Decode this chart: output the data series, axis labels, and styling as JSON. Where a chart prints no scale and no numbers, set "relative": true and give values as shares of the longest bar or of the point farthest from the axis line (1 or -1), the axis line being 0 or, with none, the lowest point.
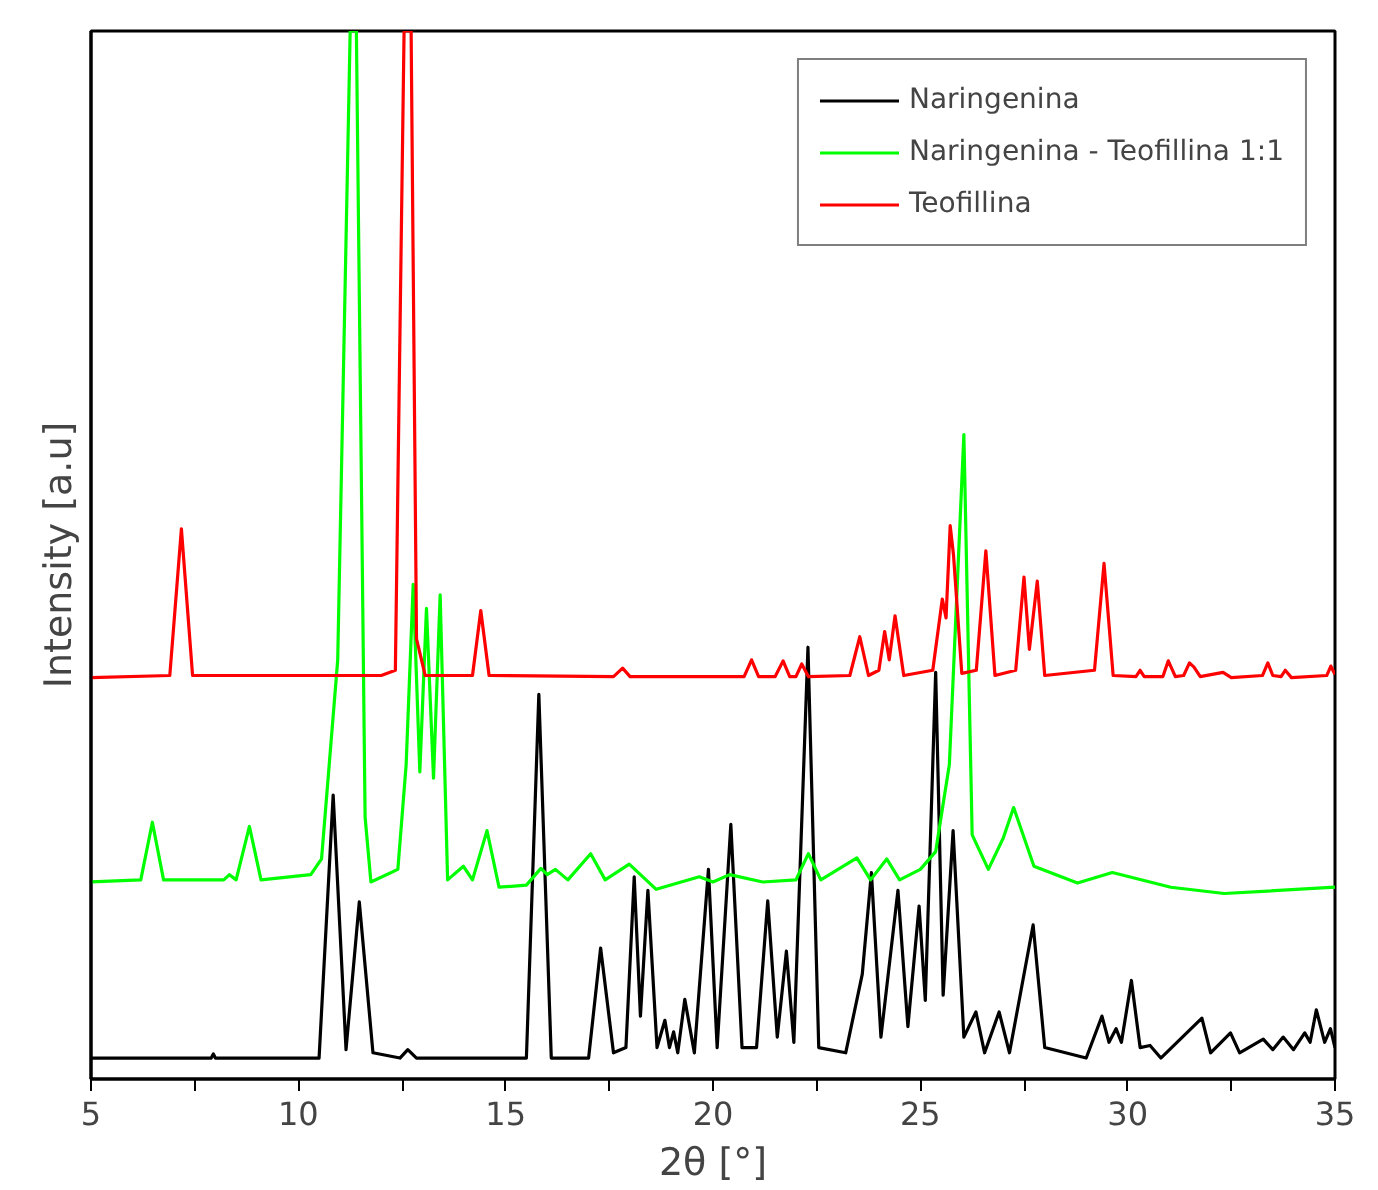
{
  "chart_data": {
    "type": "line",
    "relative": true,
    "xlabel": "2θ [°]",
    "ylabel": "Intensity [a.u]",
    "xlim": [
      5,
      35
    ],
    "xticks": [
      5,
      {
        "value": 7.5,
        "label": null
      },
      10,
      {
        "value": 12.5,
        "label": null
      },
      15,
      {
        "value": 17.5,
        "label": null
      },
      20,
      {
        "value": 22.5,
        "label": null
      },
      25,
      {
        "value": 27.5,
        "label": null
      },
      30,
      {
        "value": 32.5,
        "label": null
      },
      35
    ],
    "tick_labels": "x",
    "legend": "top right",
    "line_style": "solid",
    "marker": "none",
    "series": [
      {
        "name": "Naringenina",
        "color": "#000000",
        "x": [
          5.0,
          7.9,
          7.95,
          8.0,
          10.5,
          10.84,
          11.15,
          11.47,
          11.8,
          12.45,
          12.64,
          12.85,
          15.5,
          15.8,
          16.1,
          17.0,
          17.29,
          17.6,
          17.9,
          18.1,
          18.25,
          18.43,
          18.65,
          18.84,
          18.95,
          19.05,
          19.15,
          19.32,
          19.55,
          19.89,
          20.1,
          20.43,
          20.7,
          21.05,
          21.32,
          21.55,
          21.77,
          21.95,
          22.29,
          22.55,
          23.2,
          23.6,
          23.82,
          24.05,
          24.46,
          24.7,
          24.97,
          25.12,
          25.37,
          25.55,
          25.79,
          26.05,
          26.34,
          26.55,
          26.9,
          27.15,
          27.72,
          28.0,
          29.0,
          29.38,
          29.55,
          29.72,
          29.85,
          30.09,
          30.3,
          30.54,
          30.8,
          31.79,
          32.0,
          32.48,
          32.7,
          33.27,
          33.5,
          33.75,
          34.0,
          34.27,
          34.4,
          34.55,
          34.75,
          34.89,
          35.0
        ],
        "values": [
          0.02,
          0.02,
          0.024,
          0.02,
          0.02,
          0.271,
          0.028,
          0.169,
          0.025,
          0.02,
          0.028,
          0.02,
          0.02,
          0.367,
          0.02,
          0.02,
          0.125,
          0.025,
          0.03,
          0.193,
          0.06,
          0.18,
          0.03,
          0.056,
          0.03,
          0.045,
          0.025,
          0.076,
          0.025,
          0.2,
          0.03,
          0.243,
          0.03,
          0.03,
          0.17,
          0.04,
          0.122,
          0.035,
          0.412,
          0.03,
          0.025,
          0.1,
          0.197,
          0.04,
          0.18,
          0.05,
          0.165,
          0.075,
          0.388,
          0.08,
          0.237,
          0.04,
          0.064,
          0.025,
          0.064,
          0.025,
          0.147,
          0.03,
          0.02,
          0.06,
          0.035,
          0.048,
          0.035,
          0.094,
          0.03,
          0.032,
          0.02,
          0.058,
          0.025,
          0.044,
          0.025,
          0.038,
          0.028,
          0.04,
          0.028,
          0.044,
          0.035,
          0.066,
          0.035,
          0.048,
          0.03
        ]
      },
      {
        "name": "Naringenina - Teofillina 1:1",
        "color": "#00ff00",
        "x": [
          5.0,
          6.2,
          6.48,
          6.75,
          8.2,
          8.34,
          8.5,
          8.82,
          9.1,
          10.3,
          10.56,
          10.95,
          11.25,
          11.4,
          11.61,
          11.75,
          12.4,
          12.6,
          12.77,
          12.93,
          13.09,
          13.26,
          13.42,
          13.6,
          13.98,
          14.2,
          14.55,
          14.84,
          15.5,
          15.85,
          16.0,
          16.2,
          16.5,
          17.05,
          17.4,
          17.98,
          18.63,
          19.67,
          20.0,
          20.4,
          21.2,
          22.0,
          22.3,
          22.6,
          23.47,
          23.8,
          24.19,
          24.5,
          25.0,
          25.37,
          25.7,
          26.05,
          26.25,
          26.64,
          27.0,
          27.25,
          27.74,
          28.79,
          29.63,
          31.04,
          32.33,
          35.0
        ],
        "values": [
          0.188,
          0.19,
          0.245,
          0.19,
          0.19,
          0.195,
          0.19,
          0.241,
          0.19,
          0.195,
          0.21,
          0.4,
          1.0,
          1.0,
          0.25,
          0.188,
          0.2,
          0.3,
          0.472,
          0.293,
          0.449,
          0.287,
          0.462,
          0.19,
          0.203,
          0.19,
          0.237,
          0.183,
          0.185,
          0.201,
          0.195,
          0.2,
          0.19,
          0.215,
          0.19,
          0.205,
          0.181,
          0.193,
          0.188,
          0.195,
          0.188,
          0.19,
          0.215,
          0.19,
          0.211,
          0.19,
          0.21,
          0.19,
          0.2,
          0.217,
          0.3,
          0.615,
          0.233,
          0.2,
          0.23,
          0.259,
          0.203,
          0.187,
          0.197,
          0.183,
          0.177,
          0.183
        ]
      },
      {
        "name": "Teofillina",
        "color": "#ff0000",
        "x": [
          5.0,
          6.9,
          7.18,
          7.45,
          12.0,
          12.34,
          12.55,
          12.72,
          12.85,
          13.06,
          14.2,
          14.4,
          14.6,
          17.6,
          17.82,
          18.0,
          20.75,
          20.93,
          21.1,
          21.5,
          21.69,
          21.85,
          22.0,
          22.14,
          22.3,
          23.3,
          23.54,
          23.75,
          24.0,
          24.14,
          24.25,
          24.39,
          24.6,
          25.3,
          25.53,
          25.62,
          25.72,
          25.8,
          26.0,
          26.35,
          26.58,
          26.8,
          27.3,
          27.5,
          27.63,
          27.82,
          28.0,
          29.2,
          29.43,
          29.65,
          30.2,
          30.3,
          30.4,
          30.85,
          30.98,
          31.15,
          31.35,
          31.49,
          31.6,
          31.75,
          32.3,
          32.5,
          33.25,
          33.38,
          33.5,
          33.7,
          33.8,
          33.95,
          34.8,
          34.9,
          35.0
        ],
        "values": [
          0.383,
          0.385,
          0.525,
          0.385,
          0.385,
          0.39,
          1.0,
          1.0,
          0.42,
          0.385,
          0.385,
          0.447,
          0.385,
          0.384,
          0.392,
          0.384,
          0.384,
          0.4,
          0.384,
          0.384,
          0.399,
          0.384,
          0.384,
          0.396,
          0.384,
          0.385,
          0.422,
          0.385,
          0.39,
          0.427,
          0.4,
          0.442,
          0.385,
          0.39,
          0.458,
          0.44,
          0.528,
          0.5,
          0.387,
          0.39,
          0.504,
          0.385,
          0.39,
          0.479,
          0.41,
          0.475,
          0.385,
          0.39,
          0.492,
          0.385,
          0.384,
          0.39,
          0.384,
          0.384,
          0.399,
          0.384,
          0.385,
          0.397,
          0.393,
          0.384,
          0.388,
          0.383,
          0.385,
          0.397,
          0.385,
          0.384,
          0.39,
          0.383,
          0.385,
          0.394,
          0.386
        ]
      }
    ]
  }
}
